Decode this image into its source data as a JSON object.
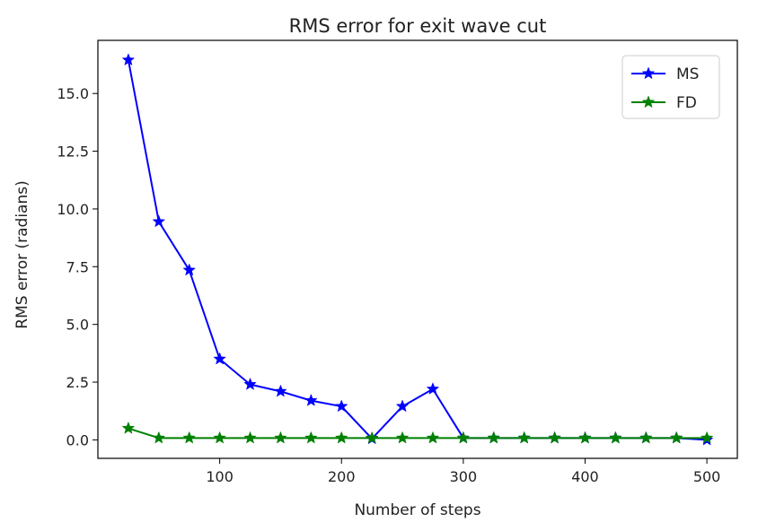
{
  "chart_data": {
    "type": "line",
    "title": "RMS error for exit wave cut",
    "xlabel": "Number of steps",
    "ylabel": "RMS error (radians)",
    "x": [
      25,
      50,
      75,
      100,
      125,
      150,
      175,
      200,
      225,
      250,
      275,
      300,
      325,
      350,
      375,
      400,
      425,
      450,
      475,
      500
    ],
    "xlim": [
      0,
      525
    ],
    "ylim": [
      -0.8,
      17.3
    ],
    "xticks": [
      100,
      200,
      300,
      400,
      500
    ],
    "xtick_labels": [
      "100",
      "200",
      "300",
      "400",
      "500"
    ],
    "yticks": [
      0.0,
      2.5,
      5.0,
      7.5,
      10.0,
      12.5,
      15.0
    ],
    "ytick_labels": [
      "0.0",
      "2.5",
      "5.0",
      "7.5",
      "10.0",
      "12.5",
      "15.0"
    ],
    "grid": false,
    "legend_position": "top-right",
    "series": [
      {
        "name": "MS",
        "color": "#0000ff",
        "marker": "star",
        "values": [
          16.45,
          9.45,
          7.35,
          3.5,
          2.4,
          2.1,
          1.7,
          1.45,
          0.05,
          1.45,
          2.2,
          0.08,
          0.08,
          0.08,
          0.08,
          0.08,
          0.08,
          0.08,
          0.08,
          0.0
        ]
      },
      {
        "name": "FD",
        "color": "#008000",
        "marker": "star",
        "values": [
          0.5,
          0.08,
          0.08,
          0.08,
          0.08,
          0.08,
          0.08,
          0.08,
          0.08,
          0.08,
          0.08,
          0.08,
          0.08,
          0.08,
          0.08,
          0.08,
          0.08,
          0.08,
          0.08,
          0.08
        ]
      }
    ]
  }
}
